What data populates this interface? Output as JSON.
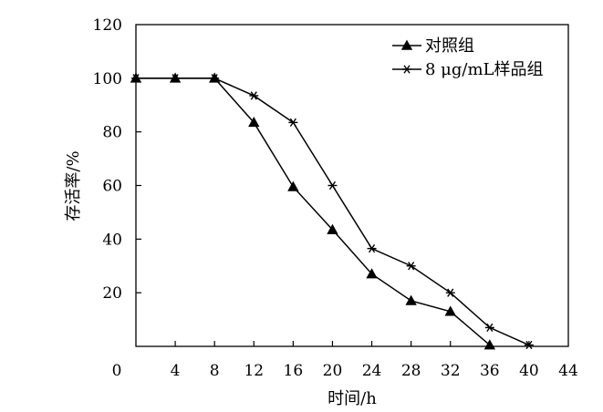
{
  "chart_data": {
    "type": "line",
    "title": "",
    "xlabel": "时间/h",
    "ylabel": "存活率/%",
    "x_ticks": [
      0,
      4,
      8,
      12,
      16,
      20,
      24,
      28,
      32,
      36,
      40,
      44
    ],
    "y_ticks": [
      20,
      40,
      60,
      80,
      100,
      120
    ],
    "xlim": [
      0,
      44
    ],
    "ylim": [
      0,
      120
    ],
    "grid": false,
    "legend_position": "top-right",
    "series": [
      {
        "name": "对照组",
        "marker": "triangle",
        "color": "#000000",
        "x": [
          0,
          4,
          8,
          12,
          16,
          20,
          24,
          28,
          32,
          36
        ],
        "y": [
          100,
          100,
          100,
          83.5,
          59.5,
          43.5,
          27,
          17,
          13,
          0.5
        ]
      },
      {
        "name": "8 μg/mL样品组",
        "marker": "asterisk",
        "color": "#000000",
        "x": [
          0,
          4,
          8,
          12,
          16,
          20,
          24,
          28,
          32,
          36,
          40
        ],
        "y": [
          100,
          100,
          100,
          93.5,
          83.5,
          60,
          36.5,
          30,
          20,
          7,
          0.5
        ]
      }
    ]
  }
}
